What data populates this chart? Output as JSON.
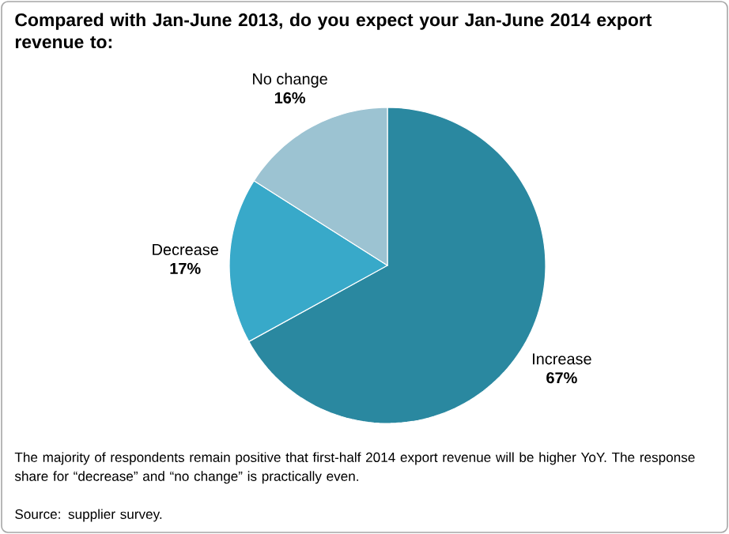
{
  "chart_data": {
    "type": "pie",
    "title": "Compared with Jan-June 2013, do you expect your Jan-June 2014 export revenue to:",
    "categories": [
      "Increase",
      "Decrease",
      "No change"
    ],
    "values": [
      67,
      17,
      16
    ],
    "value_labels": [
      "67%",
      "17%",
      "16%"
    ],
    "colors": [
      "#2a88a0",
      "#38a9c9",
      "#9cc3d2"
    ],
    "annotations": [
      "The majority of respondents remain positive that first-half 2014 export revenue will be higher YoY. The response share for “decrease” and “no change” is practically even.",
      "Source: supplier survey."
    ]
  }
}
